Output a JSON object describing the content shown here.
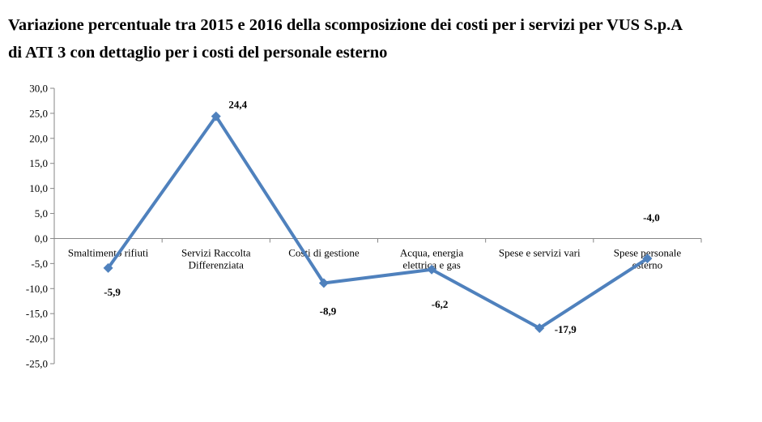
{
  "chart_data": {
    "type": "line",
    "title_lines": [
      "Variazione percentuale tra 2015 e 2016 della scomposizione dei costi per i servizi per VUS S.p.A",
      "di ATI 3 con dettaglio per i costi del personale esterno"
    ],
    "categories": [
      [
        "Smaltimento rifiuti"
      ],
      [
        "Servizi Raccolta",
        "Differenziata"
      ],
      [
        "Costi di gestione"
      ],
      [
        "Acqua, energia",
        "elettrica e gas"
      ],
      [
        "Spese e servizi vari"
      ],
      [
        "Spese personale",
        "esterno"
      ]
    ],
    "values": [
      -5.9,
      24.4,
      -8.9,
      -6.2,
      -17.9,
      -4.0
    ],
    "data_labels": [
      "-5,9",
      "24,4",
      "-8,9",
      "-6,2",
      "-17,9",
      "-4,0"
    ],
    "y_ticks": [
      30,
      25,
      20,
      15,
      10,
      5,
      0,
      -5,
      -10,
      -15,
      -20,
      -25
    ],
    "y_tick_labels": [
      "30,0",
      "25,0",
      "20,0",
      "15,0",
      "10,0",
      "5,0",
      "0,0",
      "-5,0",
      "-10,0",
      "-15,0",
      "-20,0",
      "-25,0"
    ],
    "ylim": [
      -25,
      30
    ],
    "grid": false,
    "legend": "none",
    "line_color": "#4F81BD"
  }
}
